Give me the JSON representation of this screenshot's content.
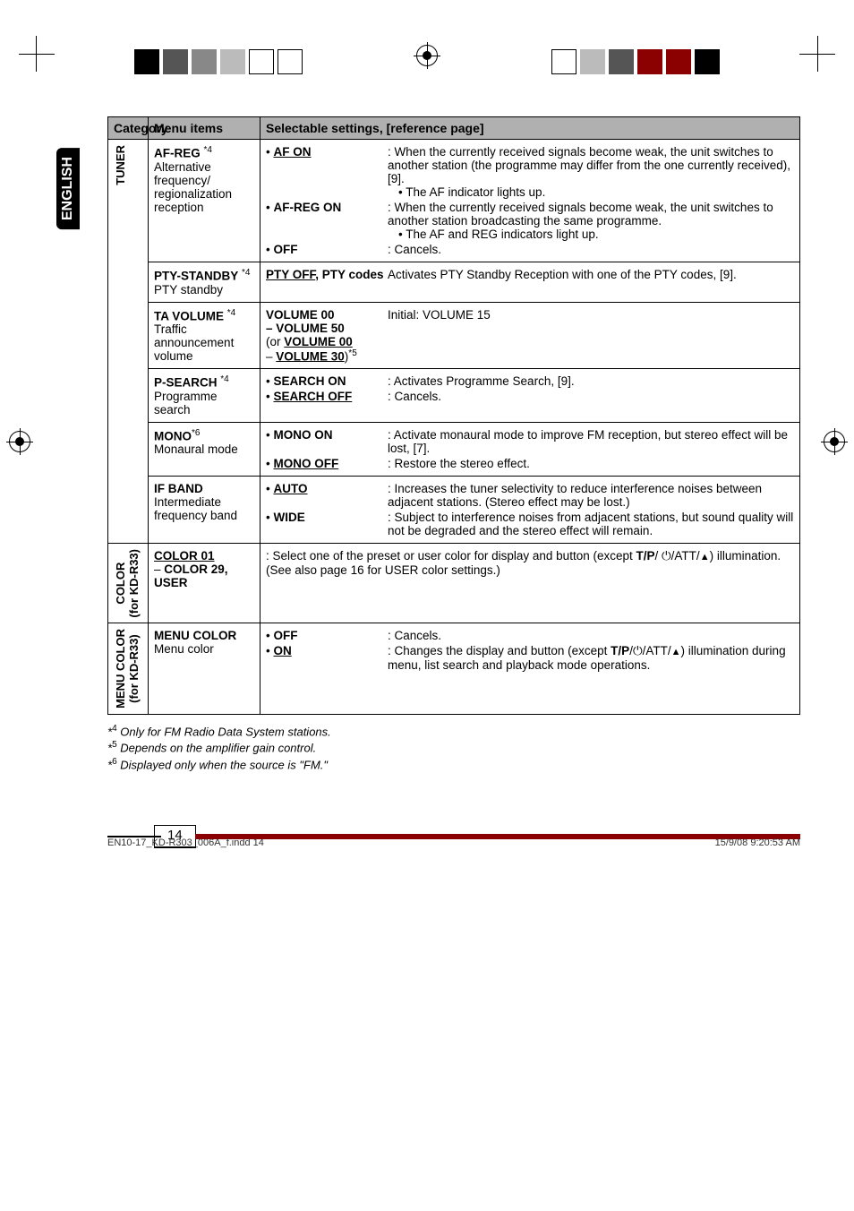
{
  "crop_squares": {
    "left": [
      "#000000",
      "#555555",
      "#888888",
      "#bbbbbb",
      "#ffffff",
      "#ffffff"
    ],
    "right": [
      "#000000",
      "#8b0000",
      "#8b0000",
      "#555555",
      "#bbbbbb",
      "#ffffff"
    ]
  },
  "lang_tab": "ENGLISH",
  "table": {
    "headers": {
      "category": "Category",
      "menu_items": "Menu items",
      "settings": "Selectable settings, [reference page]"
    },
    "col_widths": {
      "category": "45px",
      "menu_items": "125px",
      "settings": "auto"
    },
    "groups": [
      {
        "category": "TUNER",
        "rows": [
          {
            "menu_html": "<span class='b'>AF-REG</span> <span class='sup'>*4</span><br>Alternative frequency/ regionalization reception",
            "settings": [
              {
                "lbl": "• <span class='b u'>AF ON</span>",
                "desc": ": When the currently received signals become weak, the unit switches to another station (the programme may differ from the one currently received), [9].<br><span class='sub-bullet'>• The AF indicator lights up.</span>"
              },
              {
                "lbl": "• <span class='b'>AF-REG ON</span>",
                "desc": ": When the currently received signals become weak, the unit switches to another station broadcasting the same programme.<br><span class='sub-bullet'>• The AF and REG indicators light up.</span>"
              },
              {
                "lbl": "• <span class='b'>OFF</span>",
                "desc": ": Cancels."
              }
            ]
          },
          {
            "menu_html": "<span class='b'>PTY-STANDBY</span> <span class='sup'>*4</span><br>PTY standby",
            "settings": [
              {
                "lbl": "<span class='b u'>PTY OFF</span><span class='b'>, PTY codes</span>",
                "desc": "Activates PTY Standby Reception with one of the PTY codes, [9]."
              }
            ]
          },
          {
            "menu_html": "<span class='b'>TA VOLUME</span> <span class='sup'>*4</span><br>Traffic announcement volume",
            "settings": [
              {
                "lbl": "<span class='b'>VOLUME 00<br>– VOLUME 50</span><br>(or <span class='b u'>VOLUME 00</span><br>– <span class='b u'>VOLUME 30</span>)<span class='sup'>*5</span>",
                "desc": "Initial: VOLUME 15"
              }
            ]
          },
          {
            "menu_html": "<span class='b'>P-SEARCH</span> <span class='sup'>*4</span><br>Programme search",
            "settings": [
              {
                "lbl": "• <span class='b'>SEARCH ON</span>",
                "desc": ": Activates Programme Search, [9]."
              },
              {
                "lbl": "• <span class='b u'>SEARCH OFF</span>",
                "desc": ": Cancels."
              }
            ]
          },
          {
            "menu_html": "<span class='b'>MONO</span><span class='sup'>*6</span><br>Monaural mode",
            "settings": [
              {
                "lbl": "• <span class='b'>MONO ON</span>",
                "desc": ": Activate monaural mode to improve FM reception, but stereo effect will be lost, [7]."
              },
              {
                "lbl": "• <span class='b u'>MONO OFF</span>",
                "desc": ": Restore the stereo effect."
              }
            ]
          },
          {
            "menu_html": "<span class='b'>IF BAND</span><br>Intermediate frequency band",
            "settings": [
              {
                "lbl": "• <span class='b u'>AUTO</span>",
                "desc": ": Increases the tuner selectivity to reduce interference noises between adjacent stations. (Stereo effect may be lost.)"
              },
              {
                "lbl": "• <span class='b'>WIDE</span>",
                "desc": ": Subject to interference noises from adjacent stations, but sound quality will not be degraded and the stereo effect will remain."
              }
            ]
          }
        ]
      },
      {
        "category": "COLOR\n(for KD-R33)",
        "rows": [
          {
            "menu_html": "<span class='b u'>COLOR 01</span><br>– <span class='b'>COLOR 29, USER</span>",
            "settings_raw": ": Select one of the preset or user color for display and button (except <span class='b'>T/P</span>/ ⏻/ATT/<span class='eject'>▲</span>) illumination.<br>(See also page 16 for USER color settings.)"
          }
        ]
      },
      {
        "category": "MENU COLOR\n(for KD-R33)",
        "rows": [
          {
            "menu_html": "<span class='b'>MENU COLOR</span><br>Menu color",
            "settings": [
              {
                "lbl": "• <span class='b'>OFF</span>",
                "desc": ": Cancels."
              },
              {
                "lbl": "• <span class='b u'>ON</span>",
                "desc": ": Changes the display and button (except <span class='b'>T/P</span>/⏻/ATT/<span class='eject'>▲</span>) illumination during menu, list search and playback mode operations."
              }
            ]
          }
        ]
      }
    ]
  },
  "footnotes": [
    "*<span class='sup' style='font-style:normal'>4</span> Only for FM Radio Data System stations.",
    "*<span class='sup' style='font-style:normal'>5</span> Depends on the amplifier gain control.",
    "*<span class='sup' style='font-style:normal'>6</span> Displayed only when the source is \"FM.\""
  ],
  "page_number": "14",
  "footer": {
    "left": "EN10-17_KD-R303_006A_f.indd   14",
    "right": "15/9/08   9:20:53 AM"
  }
}
